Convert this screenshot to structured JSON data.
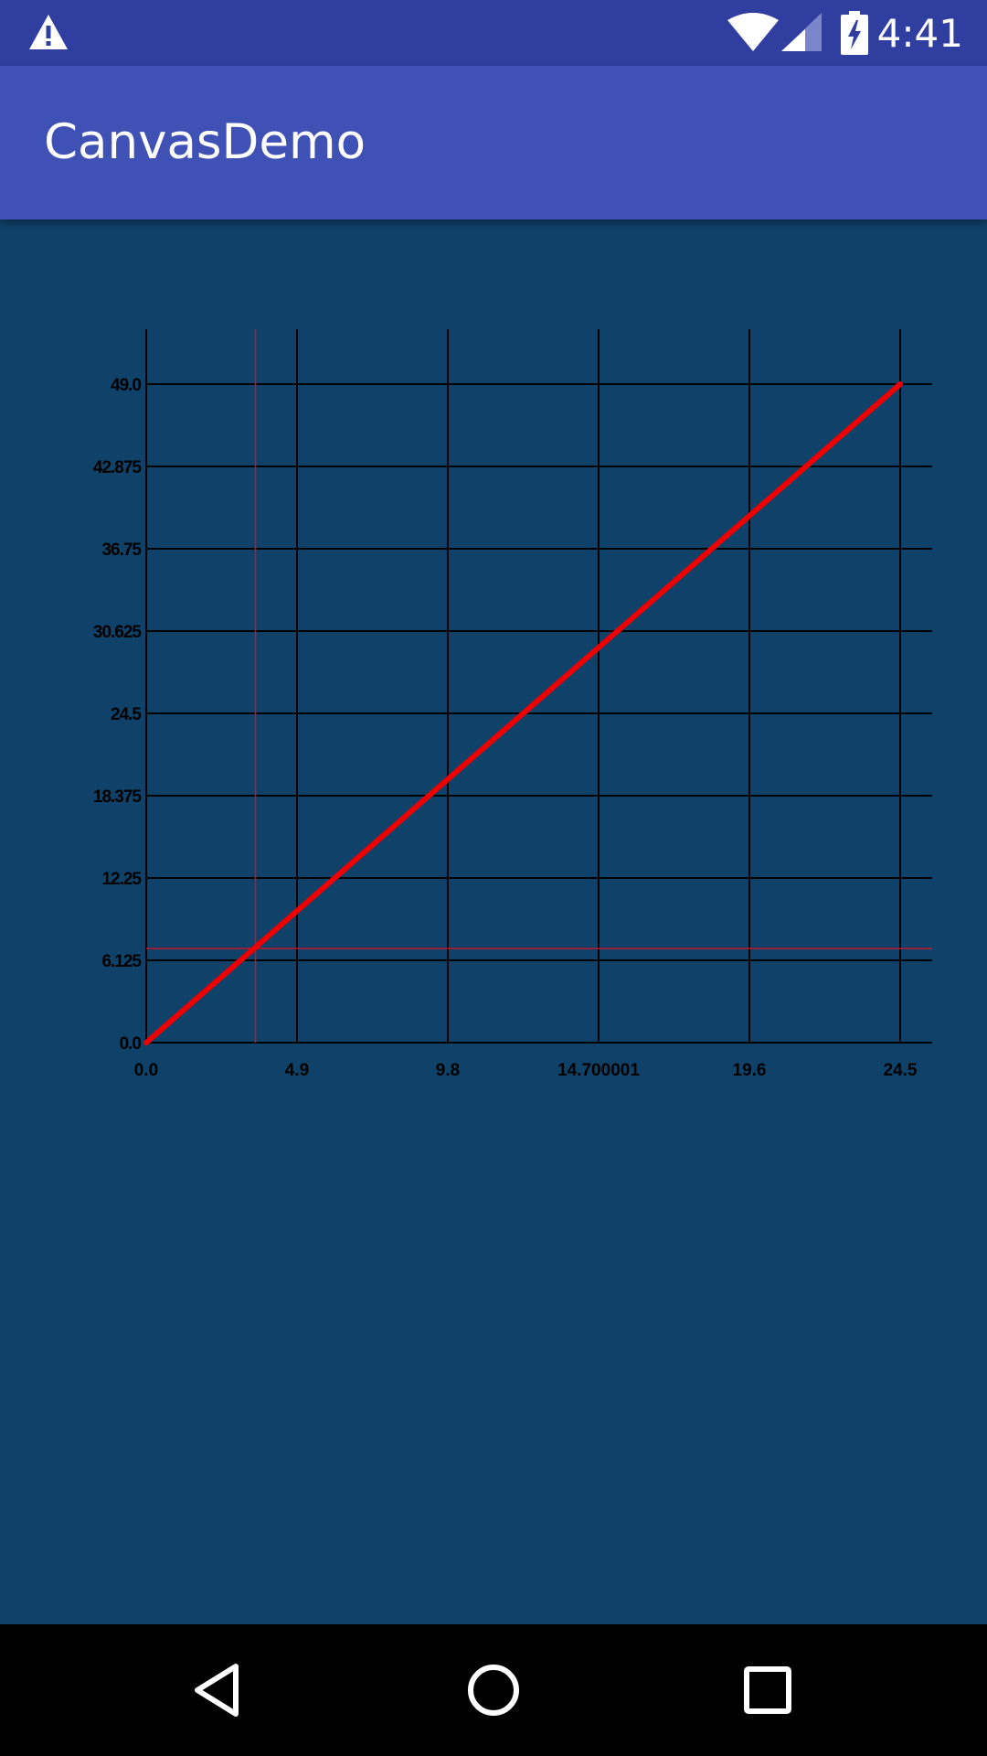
{
  "status_bar": {
    "time": "4:41",
    "icons": [
      "warning-icon",
      "wifi-icon",
      "cell-signal-icon",
      "battery-charging-icon"
    ]
  },
  "app_bar": {
    "title": "CanvasDemo"
  },
  "colors": {
    "status_bar": "#303f9f",
    "app_bar": "#3f51b5",
    "background": "#0f4169",
    "grid": "#000000",
    "series": "#ee0000",
    "crosshair": "#c0162b"
  },
  "chart_data": {
    "type": "line",
    "title": "",
    "xlabel": "",
    "ylabel": "",
    "xlim": [
      0.0,
      24.5
    ],
    "ylim": [
      0.0,
      49.0
    ],
    "x_ticks": [
      0.0,
      4.9,
      9.8,
      14.700001,
      19.6,
      24.5
    ],
    "x_tick_labels": [
      "0.0",
      "4.9",
      "9.8",
      "14.700001",
      "19.6",
      "24.5"
    ],
    "y_ticks": [
      0.0,
      6.125,
      12.25,
      18.375,
      24.5,
      30.625,
      36.75,
      42.875,
      49.0
    ],
    "y_tick_labels": [
      "0.0",
      "6.125",
      "12.25",
      "18.375",
      "24.5",
      "30.625",
      "36.75",
      "42.875",
      "49.0"
    ],
    "grid": true,
    "series": [
      {
        "x": [
          0.0,
          24.5
        ],
        "y": [
          0.0,
          49.0
        ]
      }
    ],
    "crosshair": {
      "x": 3.55,
      "y": 7.0
    }
  },
  "nav_bar": {
    "icons": [
      "back-icon",
      "home-icon",
      "recents-icon"
    ]
  }
}
